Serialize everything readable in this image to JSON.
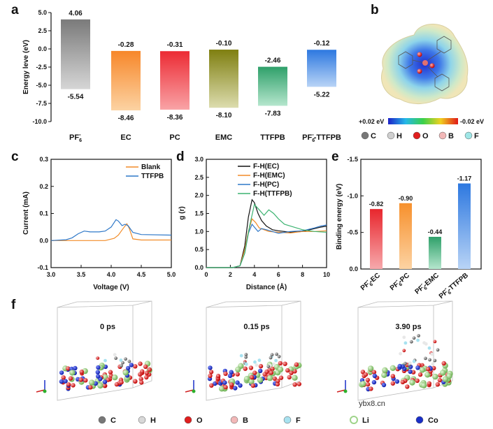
{
  "panels": {
    "a": "a",
    "b": "b",
    "c": "c",
    "d": "d",
    "e": "e",
    "f": "f"
  },
  "chart_data": [
    {
      "id": "a",
      "type": "bar",
      "ylabel": "Energy leve (eV)",
      "ylim": [
        -10,
        5
      ],
      "yticks": [
        "5.0",
        "2.5",
        "0.0",
        "-2.5",
        "-5.0",
        "-7.5",
        "-10.0"
      ],
      "yticks_values": [
        5,
        2.5,
        0,
        -2.5,
        -5,
        -7.5,
        -10
      ],
      "categories": [
        "PF6-",
        "EC",
        "PC",
        "EMC",
        "TTFPB",
        "PF6--TTFPB"
      ],
      "category_labels": [
        {
          "main": "PF",
          "sub": "6",
          "sup": "-",
          "rest": ""
        },
        {
          "main": "EC",
          "sub": "",
          "sup": "",
          "rest": ""
        },
        {
          "main": "PC",
          "sub": "",
          "sup": "",
          "rest": ""
        },
        {
          "main": "EMC",
          "sub": "",
          "sup": "",
          "rest": ""
        },
        {
          "main": "TTFPB",
          "sub": "",
          "sup": "",
          "rest": ""
        },
        {
          "main": "PF",
          "sub": "6",
          "sup": "-",
          "rest": "-TTFPB"
        }
      ],
      "lumo": [
        4.06,
        -0.28,
        -0.31,
        -0.1,
        -2.46,
        -0.12
      ],
      "homo": [
        -5.54,
        -8.46,
        -8.36,
        -8.1,
        -7.83,
        -5.22
      ],
      "lumo_labels": [
        "4.06",
        "-0.28",
        "-0.31",
        "-0.10",
        "-2.46",
        "-0.12"
      ],
      "homo_labels": [
        "-5.54",
        "-8.46",
        "-8.36",
        "-8.10",
        "-7.83",
        "-5.22"
      ],
      "colors": [
        "#8a8a8a",
        "#f79a30",
        "#ee3b3b",
        "#8c8c1e",
        "#3fb27a",
        "#3a84e6"
      ]
    },
    {
      "id": "c",
      "type": "line",
      "xlabel": "Voltage (V)",
      "ylabel": "Current (mA)",
      "xlim": [
        3.0,
        5.0
      ],
      "ylim": [
        -0.1,
        0.3
      ],
      "xticks": [
        "3.0",
        "3.5",
        "4.0",
        "4.5",
        "5.0"
      ],
      "xticks_values": [
        3.0,
        3.5,
        4.0,
        4.5,
        5.0
      ],
      "yticks": [
        "-0.1",
        "0.0",
        "0.1",
        "0.2",
        "0.3"
      ],
      "yticks_values": [
        -0.1,
        0,
        0.1,
        0.2,
        0.3
      ],
      "series": [
        {
          "name": "Blank",
          "color": "#f28c28",
          "x": [
            3.0,
            3.5,
            3.9,
            4.05,
            4.12,
            4.2,
            4.26,
            4.3,
            4.36,
            4.5,
            5.0
          ],
          "y": [
            0.0,
            0.0,
            0.0,
            0.008,
            0.02,
            0.045,
            0.062,
            0.045,
            0.006,
            0.002,
            0.002
          ]
        },
        {
          "name": "TTFPB",
          "color": "#2f78c8",
          "x": [
            3.0,
            3.25,
            3.35,
            3.45,
            3.55,
            3.65,
            3.8,
            3.9,
            4.0,
            4.08,
            4.12,
            4.18,
            4.23,
            4.28,
            4.36,
            4.5,
            5.0
          ],
          "y": [
            0.0,
            0.003,
            0.01,
            0.025,
            0.035,
            0.032,
            0.032,
            0.035,
            0.05,
            0.077,
            0.072,
            0.055,
            0.06,
            0.055,
            0.03,
            0.022,
            0.02
          ]
        }
      ]
    },
    {
      "id": "d",
      "type": "line",
      "xlabel": "Distance (Å)",
      "ylabel": "g (r)",
      "xlim": [
        0,
        10
      ],
      "ylim": [
        0,
        3.0
      ],
      "xticks": [
        "0",
        "2",
        "4",
        "6",
        "8",
        "10"
      ],
      "xticks_values": [
        0,
        2,
        4,
        6,
        8,
        10
      ],
      "yticks": [
        "0.0",
        "0.5",
        "1.0",
        "1.5",
        "2.0",
        "2.5",
        "3.0"
      ],
      "yticks_values": [
        0,
        0.5,
        1,
        1.5,
        2,
        2.5,
        3
      ],
      "series": [
        {
          "name": "F-H(EC)",
          "color": "#111111",
          "x": [
            0,
            2.2,
            2.8,
            3.2,
            3.5,
            3.8,
            4.0,
            4.3,
            4.6,
            5.0,
            5.5,
            6,
            7,
            8,
            9,
            9.5,
            10
          ],
          "y": [
            0,
            0,
            0.05,
            0.6,
            1.4,
            1.88,
            1.8,
            1.5,
            1.3,
            1.15,
            1.05,
            1.02,
            0.98,
            1.0,
            1.08,
            1.12,
            1.15
          ]
        },
        {
          "name": "F-H(EMC)",
          "color": "#f28c28",
          "x": [
            0,
            2.2,
            2.8,
            3.2,
            3.5,
            3.8,
            4.1,
            4.4,
            4.8,
            5.2,
            6,
            7,
            8,
            9,
            10
          ],
          "y": [
            0,
            0,
            0.05,
            0.5,
            1.0,
            1.35,
            1.25,
            1.1,
            1.05,
            1.0,
            0.98,
            0.96,
            1.0,
            1.0,
            1.02
          ]
        },
        {
          "name": "F-H(PC)",
          "color": "#2f78c8",
          "x": [
            0,
            2.2,
            2.8,
            3.2,
            3.5,
            3.8,
            4.0,
            4.3,
            4.6,
            5.0,
            5.5,
            6,
            7,
            8,
            9,
            9.5,
            10
          ],
          "y": [
            0,
            0,
            0.05,
            0.4,
            0.95,
            1.2,
            1.12,
            1.0,
            1.08,
            1.05,
            1.0,
            0.95,
            1.0,
            1.02,
            1.1,
            1.15,
            1.18
          ]
        },
        {
          "name": "F-H(TTFPB)",
          "color": "#3cb371",
          "x": [
            0,
            2.2,
            2.8,
            3.2,
            3.6,
            4.0,
            4.4,
            4.8,
            5.2,
            5.6,
            6,
            6.5,
            7,
            8,
            9,
            10
          ],
          "y": [
            0,
            0,
            0.05,
            0.4,
            1.15,
            1.75,
            1.6,
            1.45,
            1.6,
            1.5,
            1.35,
            1.2,
            1.15,
            1.05,
            1.0,
            0.98
          ]
        }
      ]
    },
    {
      "id": "e",
      "type": "bar",
      "ylabel": "Binding energy (eV)",
      "ylim": [
        0,
        -1.5
      ],
      "yticks": [
        "-1.5",
        "-1.0",
        "-0.5",
        "0.0"
      ],
      "yticks_values": [
        -1.5,
        -1.0,
        -0.5,
        0
      ],
      "categories": [
        "PF6--EC",
        "PF6--PC",
        "PF6--EMC",
        "PF6--TTFPB"
      ],
      "category_labels": [
        {
          "main": "PF",
          "sub": "6",
          "sup": "-",
          "rest": "-EC"
        },
        {
          "main": "PF",
          "sub": "6",
          "sup": "-",
          "rest": "-PC"
        },
        {
          "main": "PF",
          "sub": "6",
          "sup": "-",
          "rest": "-EMC"
        },
        {
          "main": "PF",
          "sub": "6",
          "sup": "-",
          "rest": "-TTFPB"
        }
      ],
      "values": [
        -0.82,
        -0.9,
        -0.44,
        -1.17
      ],
      "value_labels": [
        "-0.82",
        "-0.90",
        "-0.44",
        "-1.17"
      ],
      "colors": [
        "#ee3b3b",
        "#f79a30",
        "#3fb27a",
        "#3a84e6"
      ]
    }
  ],
  "esp": {
    "scale_left": "+0.02 eV",
    "scale_right": "-0.02 eV",
    "legend": [
      {
        "symbol": "C",
        "color": "#777777"
      },
      {
        "symbol": "H",
        "color": "#cfcfcf"
      },
      {
        "symbol": "O",
        "color": "#e01e1e"
      },
      {
        "symbol": "B",
        "color": "#f2b8b8"
      },
      {
        "symbol": "F",
        "color": "#9fe6e6"
      }
    ]
  },
  "md": {
    "times": [
      "0 ps",
      "0.15 ps",
      "3.90 ps"
    ],
    "legend": [
      {
        "symbol": "C",
        "color": "#777777"
      },
      {
        "symbol": "H",
        "color": "#d8d8d8"
      },
      {
        "symbol": "O",
        "color": "#e01e1e"
      },
      {
        "symbol": "B",
        "color": "#f2b8b8"
      },
      {
        "symbol": "F",
        "color": "#a8e2f0"
      },
      {
        "symbol": "Li",
        "color": "#9fd48a"
      },
      {
        "symbol": "Co",
        "color": "#1a2fc8"
      }
    ]
  },
  "watermark": "ybx8.cn"
}
